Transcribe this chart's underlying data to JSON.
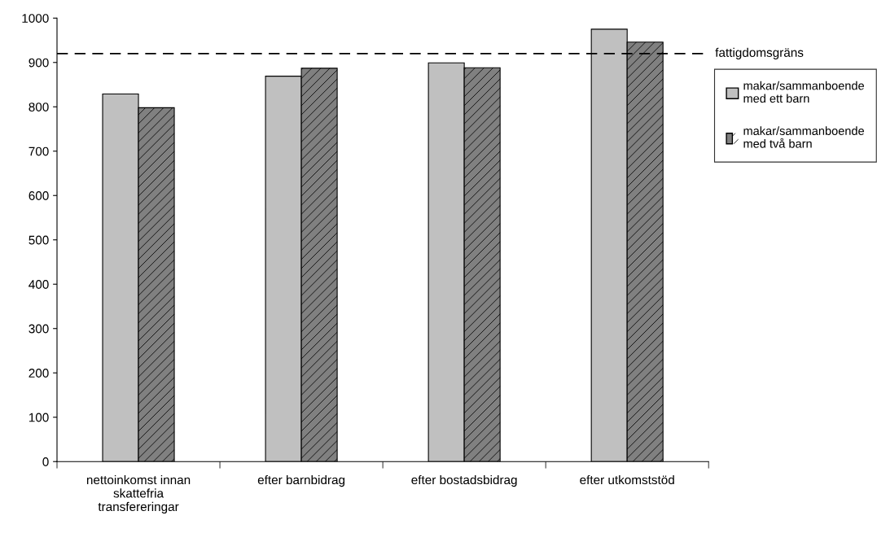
{
  "chart_data": {
    "type": "bar",
    "categories": [
      "nettoinkomst innan\nskattefria\ntransfereringar",
      "efter barnbidrag",
      "efter bostadsbidrag",
      "efter utkomststöd"
    ],
    "series": [
      {
        "name": "makar/sammanboende\nmed ett barn",
        "color": "#c0c0c0",
        "values": [
          829,
          869,
          899,
          975
        ]
      },
      {
        "name": "makar/sammanboende\nmed två barn",
        "color": "#808080",
        "values": [
          798,
          887,
          888,
          946
        ]
      }
    ],
    "ylim": [
      0,
      1000
    ],
    "yticks": [
      0,
      100,
      200,
      300,
      400,
      500,
      600,
      700,
      800,
      900,
      1000
    ],
    "ref_lines": [
      {
        "axis": "y",
        "value": 920,
        "label": "fattigdomsgräns",
        "color": "#000000",
        "line_style": "dashed"
      }
    ],
    "grid": false,
    "legend": "right"
  }
}
